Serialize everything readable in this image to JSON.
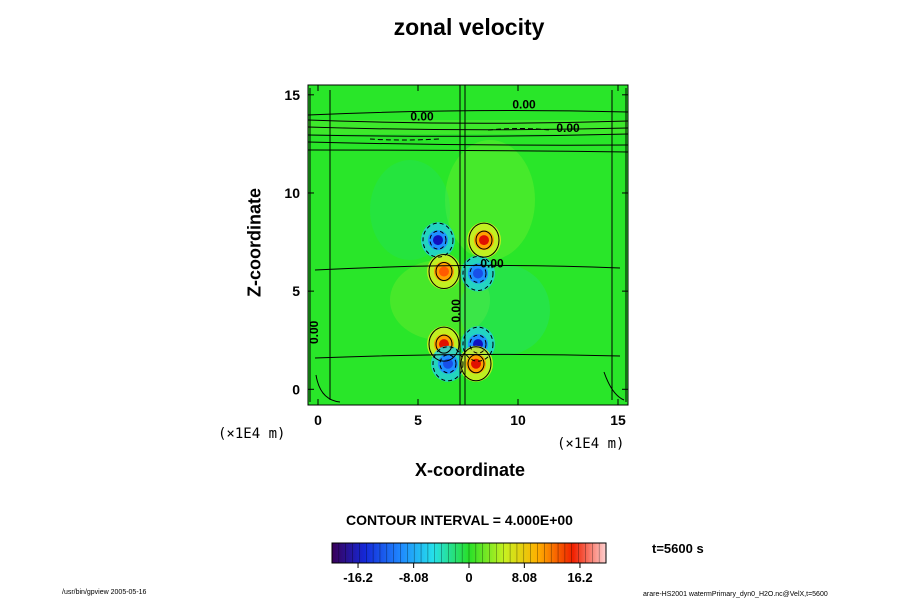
{
  "chart_data": {
    "type": "heatmap",
    "title": "zonal velocity",
    "xlabel": "X-coordinate",
    "ylabel": "Z-coordinate",
    "x_unit": "(×1E4 m)",
    "y_unit": "(×1E4 m)",
    "xlim": [
      -0.5,
      15.5
    ],
    "ylim": [
      -0.8,
      15.5
    ],
    "x_ticks": [
      0,
      5,
      10,
      15
    ],
    "y_ticks": [
      0,
      5,
      10,
      15
    ],
    "contour_interval_text": "CONTOUR INTERVAL = 4.000E+00",
    "time_text": "t=5600 s",
    "colorbar": {
      "min": -20,
      "max": 20,
      "tick_values": [
        -16.2,
        -8.08,
        0,
        8.08,
        16.2
      ],
      "tick_labels": [
        "-16.2",
        "-8.08",
        "0",
        "8.08",
        "16.2"
      ]
    },
    "contour_labels": [
      {
        "text": "0.00",
        "x": 10.3,
        "y": 14.3
      },
      {
        "text": "0.00",
        "x": 5.2,
        "y": 13.7
      },
      {
        "text": "0.00",
        "x": 12.5,
        "y": 13.1
      },
      {
        "text": "0.00",
        "x": 8.7,
        "y": 6.2
      },
      {
        "text": "0.00",
        "x": 7.1,
        "y": 4.0
      },
      {
        "text": "0.00",
        "x": 0.0,
        "y": 2.9
      }
    ],
    "extrema": [
      {
        "x": 6.0,
        "y": 7.6,
        "value": -16
      },
      {
        "x": 8.3,
        "y": 7.6,
        "value": 18
      },
      {
        "x": 6.3,
        "y": 6.0,
        "value": 17
      },
      {
        "x": 8.0,
        "y": 5.9,
        "value": -15
      },
      {
        "x": 6.3,
        "y": 2.3,
        "value": 18
      },
      {
        "x": 8.0,
        "y": 2.3,
        "value": -17
      },
      {
        "x": 6.5,
        "y": 1.3,
        "value": -15
      },
      {
        "x": 7.9,
        "y": 1.3,
        "value": 20
      }
    ]
  },
  "footer": {
    "left": "/usr/bin/gpview 2005-05-16",
    "right": "arare-HS2001 watermPrimary_dyn0_H2O.nc@VelX,t=5600"
  }
}
